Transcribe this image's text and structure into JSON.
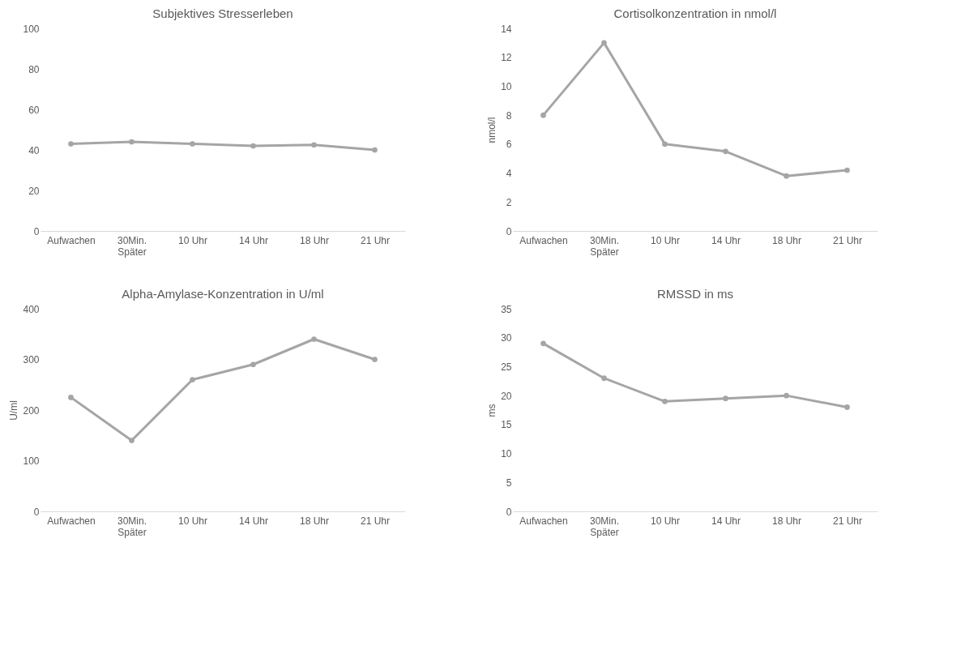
{
  "chart_data": [
    {
      "type": "line",
      "title": "Subjektives Stresserleben",
      "categories": [
        "Aufwachen",
        "30Min. Später",
        "10 Uhr",
        "14 Uhr",
        "18 Uhr",
        "21 Uhr"
      ],
      "series": [
        {
          "color": "#a5a5a5",
          "values": [
            43,
            44,
            43,
            42,
            42.5,
            40
          ]
        }
      ],
      "ylim": [
        0,
        100
      ],
      "yticks": [
        0,
        20,
        40,
        60,
        80,
        100
      ],
      "grid": false,
      "marker": "circle",
      "line_style": "solid"
    },
    {
      "type": "line",
      "title": "Cortisolkonzentration in nmol/l",
      "ylabel": "nmol/l",
      "categories": [
        "Aufwachen",
        "30Min. Später",
        "10 Uhr",
        "14 Uhr",
        "18 Uhr",
        "21 Uhr"
      ],
      "series": [
        {
          "color": "#a5a5a5",
          "values": [
            8,
            13,
            6,
            5.5,
            3.8,
            4.2
          ]
        }
      ],
      "ylim": [
        0,
        14
      ],
      "yticks": [
        0,
        2,
        4,
        6,
        8,
        10,
        12,
        14
      ],
      "grid": false,
      "marker": "circle",
      "line_style": "solid"
    },
    {
      "type": "line",
      "title": "Alpha-Amylase-Konzentration in U/ml",
      "ylabel": "U/ml",
      "categories": [
        "Aufwachen",
        "30Min. Später",
        "10 Uhr",
        "14 Uhr",
        "18 Uhr",
        "21 Uhr"
      ],
      "series": [
        {
          "color": "#a5a5a5",
          "values": [
            225,
            140,
            260,
            290,
            340,
            300
          ]
        }
      ],
      "ylim": [
        0,
        400
      ],
      "yticks": [
        0,
        100,
        200,
        300,
        400
      ],
      "grid": false,
      "marker": "circle",
      "line_style": "solid"
    },
    {
      "type": "line",
      "title": "RMSSD in ms",
      "ylabel": "ms",
      "categories": [
        "Aufwachen",
        "30Min. Später",
        "10 Uhr",
        "14 Uhr",
        "18 Uhr",
        "21 Uhr"
      ],
      "series": [
        {
          "color": "#a5a5a5",
          "values": [
            29,
            23,
            19,
            19.5,
            20,
            18
          ]
        }
      ],
      "ylim": [
        0,
        35
      ],
      "yticks": [
        0,
        5,
        10,
        15,
        20,
        25,
        30,
        35
      ],
      "grid": false,
      "marker": "circle",
      "line_style": "solid"
    }
  ]
}
